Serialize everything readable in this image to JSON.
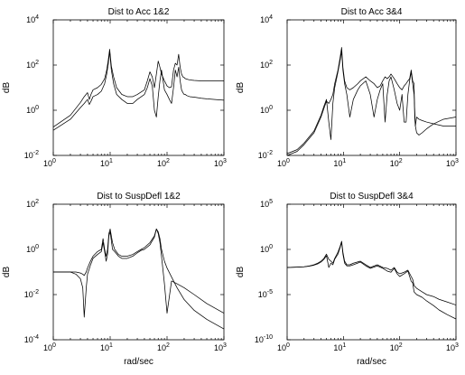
{
  "chart_data": [
    {
      "type": "line",
      "title": "Dist to Acc 1&2",
      "xlabel": "",
      "ylabel": "dB",
      "xscale": "log",
      "yscale": "log",
      "xlim": [
        1,
        1000
      ],
      "ylim": [
        0.01,
        10000
      ],
      "xticks": [
        {
          "base": "10",
          "exp": "0"
        },
        {
          "base": "10",
          "exp": "1"
        },
        {
          "base": "10",
          "exp": "2"
        },
        {
          "base": "10",
          "exp": "3"
        }
      ],
      "yticks": [
        {
          "base": "10",
          "exp": "-2"
        },
        {
          "base": "10",
          "exp": "0"
        },
        {
          "base": "10",
          "exp": "2"
        },
        {
          "base": "10",
          "exp": "4"
        }
      ],
      "series": [
        {
          "x": [
            1,
            2,
            3,
            3.5,
            4,
            4.3,
            4.6,
            5,
            6,
            7,
            8,
            8.7,
            9.3,
            9.8,
            10.5,
            11.5,
            13,
            16,
            20,
            25,
            30,
            40,
            45,
            50,
            55,
            60,
            65,
            70,
            75,
            80,
            90,
            100,
            110,
            120,
            130,
            140,
            150,
            160,
            170,
            180,
            190,
            200,
            210,
            220,
            250,
            300,
            400,
            500,
            700,
            1000
          ],
          "y": [
            0.18,
            0.6,
            2.2,
            4,
            6,
            3,
            5,
            8,
            10,
            14,
            25,
            60,
            180,
            500,
            90,
            30,
            10,
            5,
            4,
            4,
            5,
            8,
            20,
            50,
            30,
            10,
            40,
            150,
            80,
            40,
            20,
            12,
            10,
            11,
            60,
            120,
            100,
            300,
            80,
            40,
            30,
            28,
            25,
            24,
            22,
            21,
            20,
            20,
            20,
            20
          ]
        },
        {
          "x": [
            1,
            2,
            3,
            3.5,
            4,
            4.3,
            4.6,
            5,
            6,
            7,
            8,
            8.7,
            9.3,
            9.8,
            10.5,
            11.5,
            13,
            16,
            20,
            25,
            30,
            40,
            45,
            50,
            55,
            60,
            65,
            70,
            75,
            80,
            90,
            100,
            110,
            120,
            130,
            140,
            150,
            160,
            170,
            180,
            190,
            200,
            210,
            220,
            250,
            300,
            400,
            500,
            700,
            1000
          ],
          "y": [
            0.13,
            0.4,
            1.3,
            2,
            3,
            1.8,
            2.5,
            4,
            5,
            7,
            15,
            40,
            120,
            400,
            60,
            15,
            5,
            3,
            2,
            2,
            3,
            5,
            10,
            25,
            12,
            1,
            0.5,
            4,
            20,
            60,
            8,
            5,
            3,
            2,
            10,
            60,
            30,
            80,
            20,
            8,
            6,
            5,
            5,
            4.5,
            4,
            3.8,
            3.4,
            3.2,
            3,
            2.8
          ]
        }
      ]
    },
    {
      "type": "line",
      "title": "Dist to Acc 3&4",
      "xlabel": "",
      "ylabel": "dB",
      "xscale": "log",
      "yscale": "log",
      "xlim": [
        1,
        1000
      ],
      "ylim": [
        0.01,
        10000
      ],
      "xticks": [
        {
          "base": "10",
          "exp": "0"
        },
        {
          "base": "10",
          "exp": "1"
        },
        {
          "base": "10",
          "exp": "2"
        },
        {
          "base": "10",
          "exp": "3"
        }
      ],
      "yticks": [
        {
          "base": "10",
          "exp": "-2"
        },
        {
          "base": "10",
          "exp": "0"
        },
        {
          "base": "10",
          "exp": "2"
        },
        {
          "base": "10",
          "exp": "4"
        }
      ],
      "series": [
        {
          "x": [
            1,
            1.5,
            2,
            3,
            4,
            4.5,
            5,
            5.5,
            6,
            6.5,
            7,
            8,
            8.7,
            9.3,
            9.8,
            10.5,
            11.5,
            13,
            15,
            18,
            20,
            25,
            30,
            35,
            40,
            45,
            50,
            55,
            60,
            65,
            70,
            80,
            90,
            100,
            110,
            120,
            130,
            140,
            150,
            160,
            170,
            180,
            185,
            190,
            200,
            220,
            250,
            300,
            400,
            600,
            1000
          ],
          "y": [
            0.01,
            0.015,
            0.03,
            0.1,
            0.5,
            1.2,
            2.5,
            2,
            3,
            5,
            15,
            60,
            200,
            600,
            80,
            20,
            10,
            8,
            10,
            15,
            20,
            30,
            20,
            15,
            10,
            12,
            20,
            30,
            25,
            30,
            40,
            25,
            15,
            10,
            8,
            12,
            15,
            20,
            25,
            60,
            20,
            15,
            0.5,
            0.2,
            0.5,
            0.4,
            0.35,
            0.3,
            0.25,
            0.2,
            0.2
          ]
        },
        {
          "x": [
            1,
            1.5,
            2,
            3,
            4,
            4.5,
            5,
            5.5,
            6,
            6.5,
            7,
            8,
            8.7,
            9.3,
            9.8,
            10.5,
            11.5,
            13,
            15,
            18,
            20,
            25,
            30,
            35,
            40,
            45,
            50,
            55,
            60,
            65,
            70,
            80,
            90,
            100,
            110,
            120,
            130,
            140,
            150,
            160,
            170,
            180,
            185,
            190,
            200,
            220,
            250,
            300,
            400,
            600,
            1000
          ],
          "y": [
            0.012,
            0.018,
            0.035,
            0.12,
            0.6,
            1.5,
            3,
            0.3,
            0.05,
            2,
            10,
            50,
            150,
            400,
            60,
            15,
            5,
            0.5,
            3,
            8,
            12,
            20,
            5,
            0.5,
            3,
            8,
            15,
            0.3,
            5,
            20,
            30,
            8,
            2,
            1,
            5,
            0.3,
            0.3,
            5,
            20,
            50,
            15,
            5,
            1,
            0.2,
            0.1,
            0.08,
            0.1,
            0.15,
            0.25,
            0.4,
            0.5
          ]
        }
      ]
    },
    {
      "type": "line",
      "title": "Dist to SuspDefl 1&2",
      "xlabel": "rad/sec",
      "ylabel": "dB",
      "xscale": "log",
      "yscale": "log",
      "xlim": [
        1,
        1000
      ],
      "ylim": [
        0.0001,
        100
      ],
      "xticks": [
        {
          "base": "10",
          "exp": "0"
        },
        {
          "base": "10",
          "exp": "1"
        },
        {
          "base": "10",
          "exp": "2"
        },
        {
          "base": "10",
          "exp": "3"
        }
      ],
      "yticks": [
        {
          "base": "10",
          "exp": "-4"
        },
        {
          "base": "10",
          "exp": "-2"
        },
        {
          "base": "10",
          "exp": "0"
        },
        {
          "base": "10",
          "exp": "2"
        }
      ],
      "series": [
        {
          "x": [
            1,
            1.5,
            2,
            2.5,
            3,
            3.3,
            3.5,
            3.8,
            4,
            4.5,
            5,
            6,
            7,
            7.5,
            8,
            8.5,
            9,
            9.5,
            10,
            11,
            12,
            14,
            16,
            18,
            20,
            25,
            30,
            35,
            40,
            50,
            60,
            65,
            70,
            75,
            80,
            90,
            100,
            120,
            150,
            200,
            300,
            500,
            1000
          ],
          "y": [
            0.1,
            0.1,
            0.1,
            0.1,
            0.09,
            0.08,
            0.07,
            0.1,
            0.15,
            0.3,
            0.5,
            0.8,
            1,
            3,
            1,
            0.5,
            1,
            5,
            8,
            2,
            1,
            0.6,
            0.5,
            0.5,
            0.5,
            0.6,
            0.8,
            1,
            1.2,
            2,
            4,
            8,
            6,
            3,
            1,
            0.3,
            0.15,
            0.06,
            0.02,
            0.006,
            0.002,
            0.0008,
            0.0003
          ]
        },
        {
          "x": [
            1,
            1.5,
            2,
            2.5,
            3,
            3.3,
            3.5,
            3.8,
            4,
            4.5,
            5,
            6,
            7,
            7.5,
            8,
            8.5,
            9,
            9.5,
            10,
            11,
            12,
            14,
            16,
            18,
            20,
            25,
            30,
            35,
            40,
            50,
            60,
            65,
            70,
            75,
            80,
            90,
            100,
            120,
            150,
            200,
            300,
            500,
            1000
          ],
          "y": [
            0.1,
            0.1,
            0.1,
            0.08,
            0.05,
            0.02,
            0.001,
            0.02,
            0.08,
            0.2,
            0.4,
            0.6,
            0.8,
            2,
            0.8,
            0.3,
            0.6,
            4,
            6,
            1,
            0.8,
            0.5,
            0.4,
            0.4,
            0.4,
            0.5,
            0.7,
            0.9,
            1,
            1.6,
            3.5,
            8,
            5,
            2,
            0.5,
            0.03,
            0.0015,
            0.04,
            0.03,
            0.02,
            0.01,
            0.004,
            0.0015
          ]
        }
      ]
    },
    {
      "type": "line",
      "title": "Dist to SuspDefl 3&4",
      "xlabel": "rad/sec",
      "ylabel": "dB",
      "xscale": "log",
      "yscale": "log",
      "xlim": [
        1,
        1000
      ],
      "ylim": [
        1e-10,
        100000
      ],
      "xticks": [
        {
          "base": "10",
          "exp": "0"
        },
        {
          "base": "10",
          "exp": "1"
        },
        {
          "base": "10",
          "exp": "2"
        },
        {
          "base": "10",
          "exp": "3"
        }
      ],
      "yticks": [
        {
          "base": "10",
          "exp": "-10"
        },
        {
          "base": "10",
          "exp": "-5"
        },
        {
          "base": "10",
          "exp": "0"
        },
        {
          "base": "10",
          "exp": "5"
        }
      ],
      "series": [
        {
          "x": [
            1,
            1.5,
            2,
            2.5,
            3,
            3.5,
            4,
            4.5,
            5,
            5.5,
            6,
            6.5,
            7,
            8,
            8.7,
            9.3,
            9.8,
            10.5,
            11.5,
            13,
            15,
            20,
            25,
            30,
            40,
            50,
            60,
            70,
            80,
            90,
            100,
            120,
            140,
            160,
            170,
            180,
            200,
            250,
            300,
            400,
            500,
            700,
            1000
          ],
          "y": [
            0.01,
            0.011,
            0.012,
            0.015,
            0.02,
            0.03,
            0.05,
            0.1,
            0.3,
            0.08,
            0.05,
            0.03,
            0.1,
            0.5,
            2,
            8,
            0.5,
            0.05,
            0.02,
            0.02,
            0.03,
            0.05,
            0.02,
            0.01,
            0.02,
            0.01,
            0.008,
            0.005,
            0.01,
            0.003,
            0.002,
            0.003,
            0.005,
            0.001,
            0.0005,
            0.0001,
            5e-05,
            2e-05,
            1e-05,
            6e-06,
            3e-06,
            1.5e-06,
            7e-07
          ]
        },
        {
          "x": [
            1,
            1.5,
            2,
            2.5,
            3,
            3.5,
            4,
            4.5,
            5,
            5.5,
            6,
            6.5,
            7,
            8,
            8.7,
            9.3,
            9.8,
            10.5,
            11.5,
            13,
            15,
            20,
            25,
            30,
            40,
            50,
            60,
            70,
            80,
            90,
            100,
            120,
            140,
            160,
            170,
            180,
            200,
            250,
            300,
            400,
            500,
            700,
            1000
          ],
          "y": [
            0.01,
            0.011,
            0.012,
            0.014,
            0.018,
            0.025,
            0.04,
            0.08,
            0.2,
            0.01,
            0.03,
            0.02,
            0.08,
            0.3,
            1.5,
            6,
            0.3,
            0.03,
            0.015,
            0.015,
            0.02,
            0.04,
            0.015,
            0.008,
            0.015,
            0.008,
            0.004,
            0.003,
            0.008,
            0.002,
            0.001,
            0.002,
            0.004,
            0.0003,
            0.0002,
            2e-05,
            1e-05,
            5e-06,
            2e-06,
            6e-07,
            2e-07,
            6e-08,
            2e-08
          ]
        }
      ]
    }
  ]
}
